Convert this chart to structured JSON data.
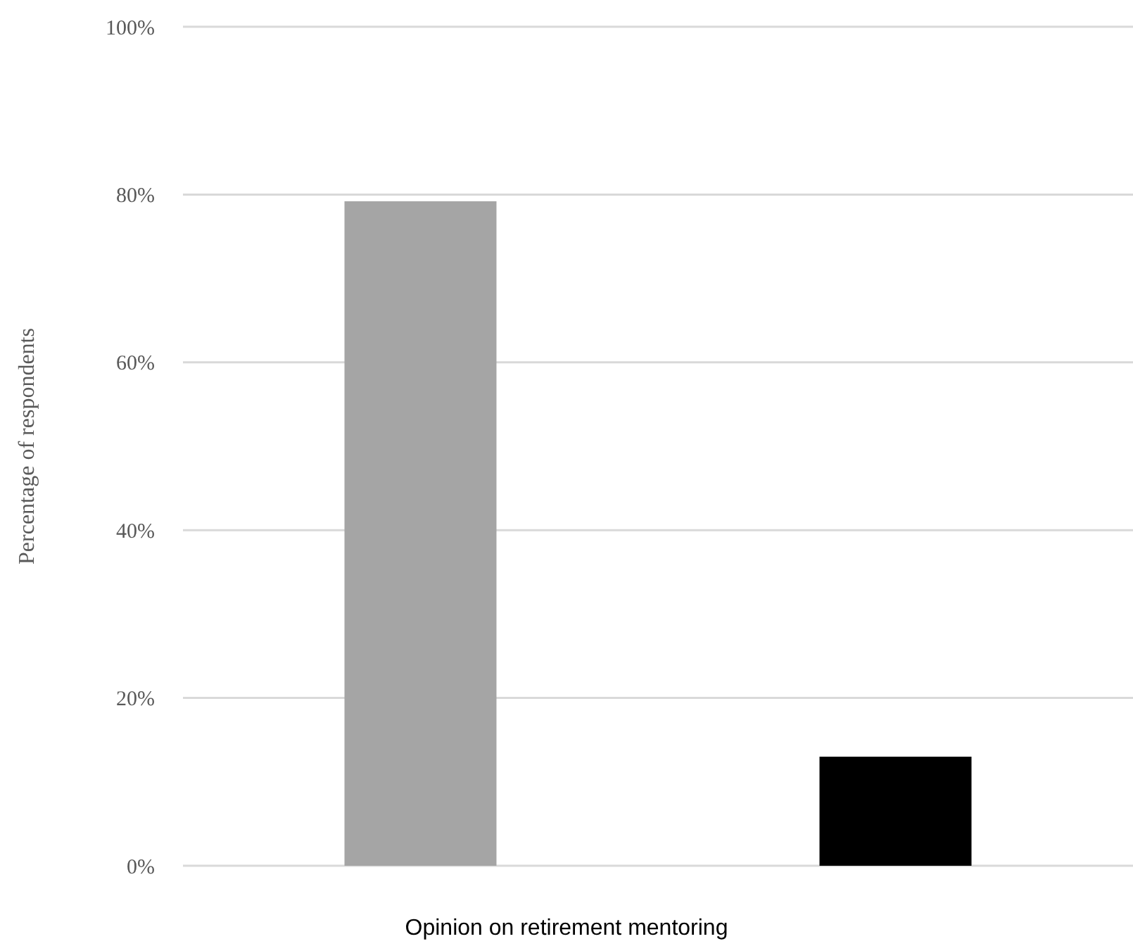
{
  "chart_data": {
    "type": "bar",
    "xlabel": "Opinion on retirement mentoring",
    "ylabel": "Percentage of respondents",
    "categories": [
      null,
      null
    ],
    "values": [
      79.2,
      13.0
    ],
    "colors": [
      "#a5a5a5",
      "#000000"
    ],
    "ylim": [
      0,
      100
    ],
    "yticks": [
      {
        "value": 0,
        "label": "0%"
      },
      {
        "value": 20,
        "label": "20%"
      },
      {
        "value": 40,
        "label": "40%"
      },
      {
        "value": 60,
        "label": "60%"
      },
      {
        "value": 80,
        "label": "80%"
      },
      {
        "value": 100,
        "label": "100%"
      }
    ],
    "grid": "y"
  }
}
